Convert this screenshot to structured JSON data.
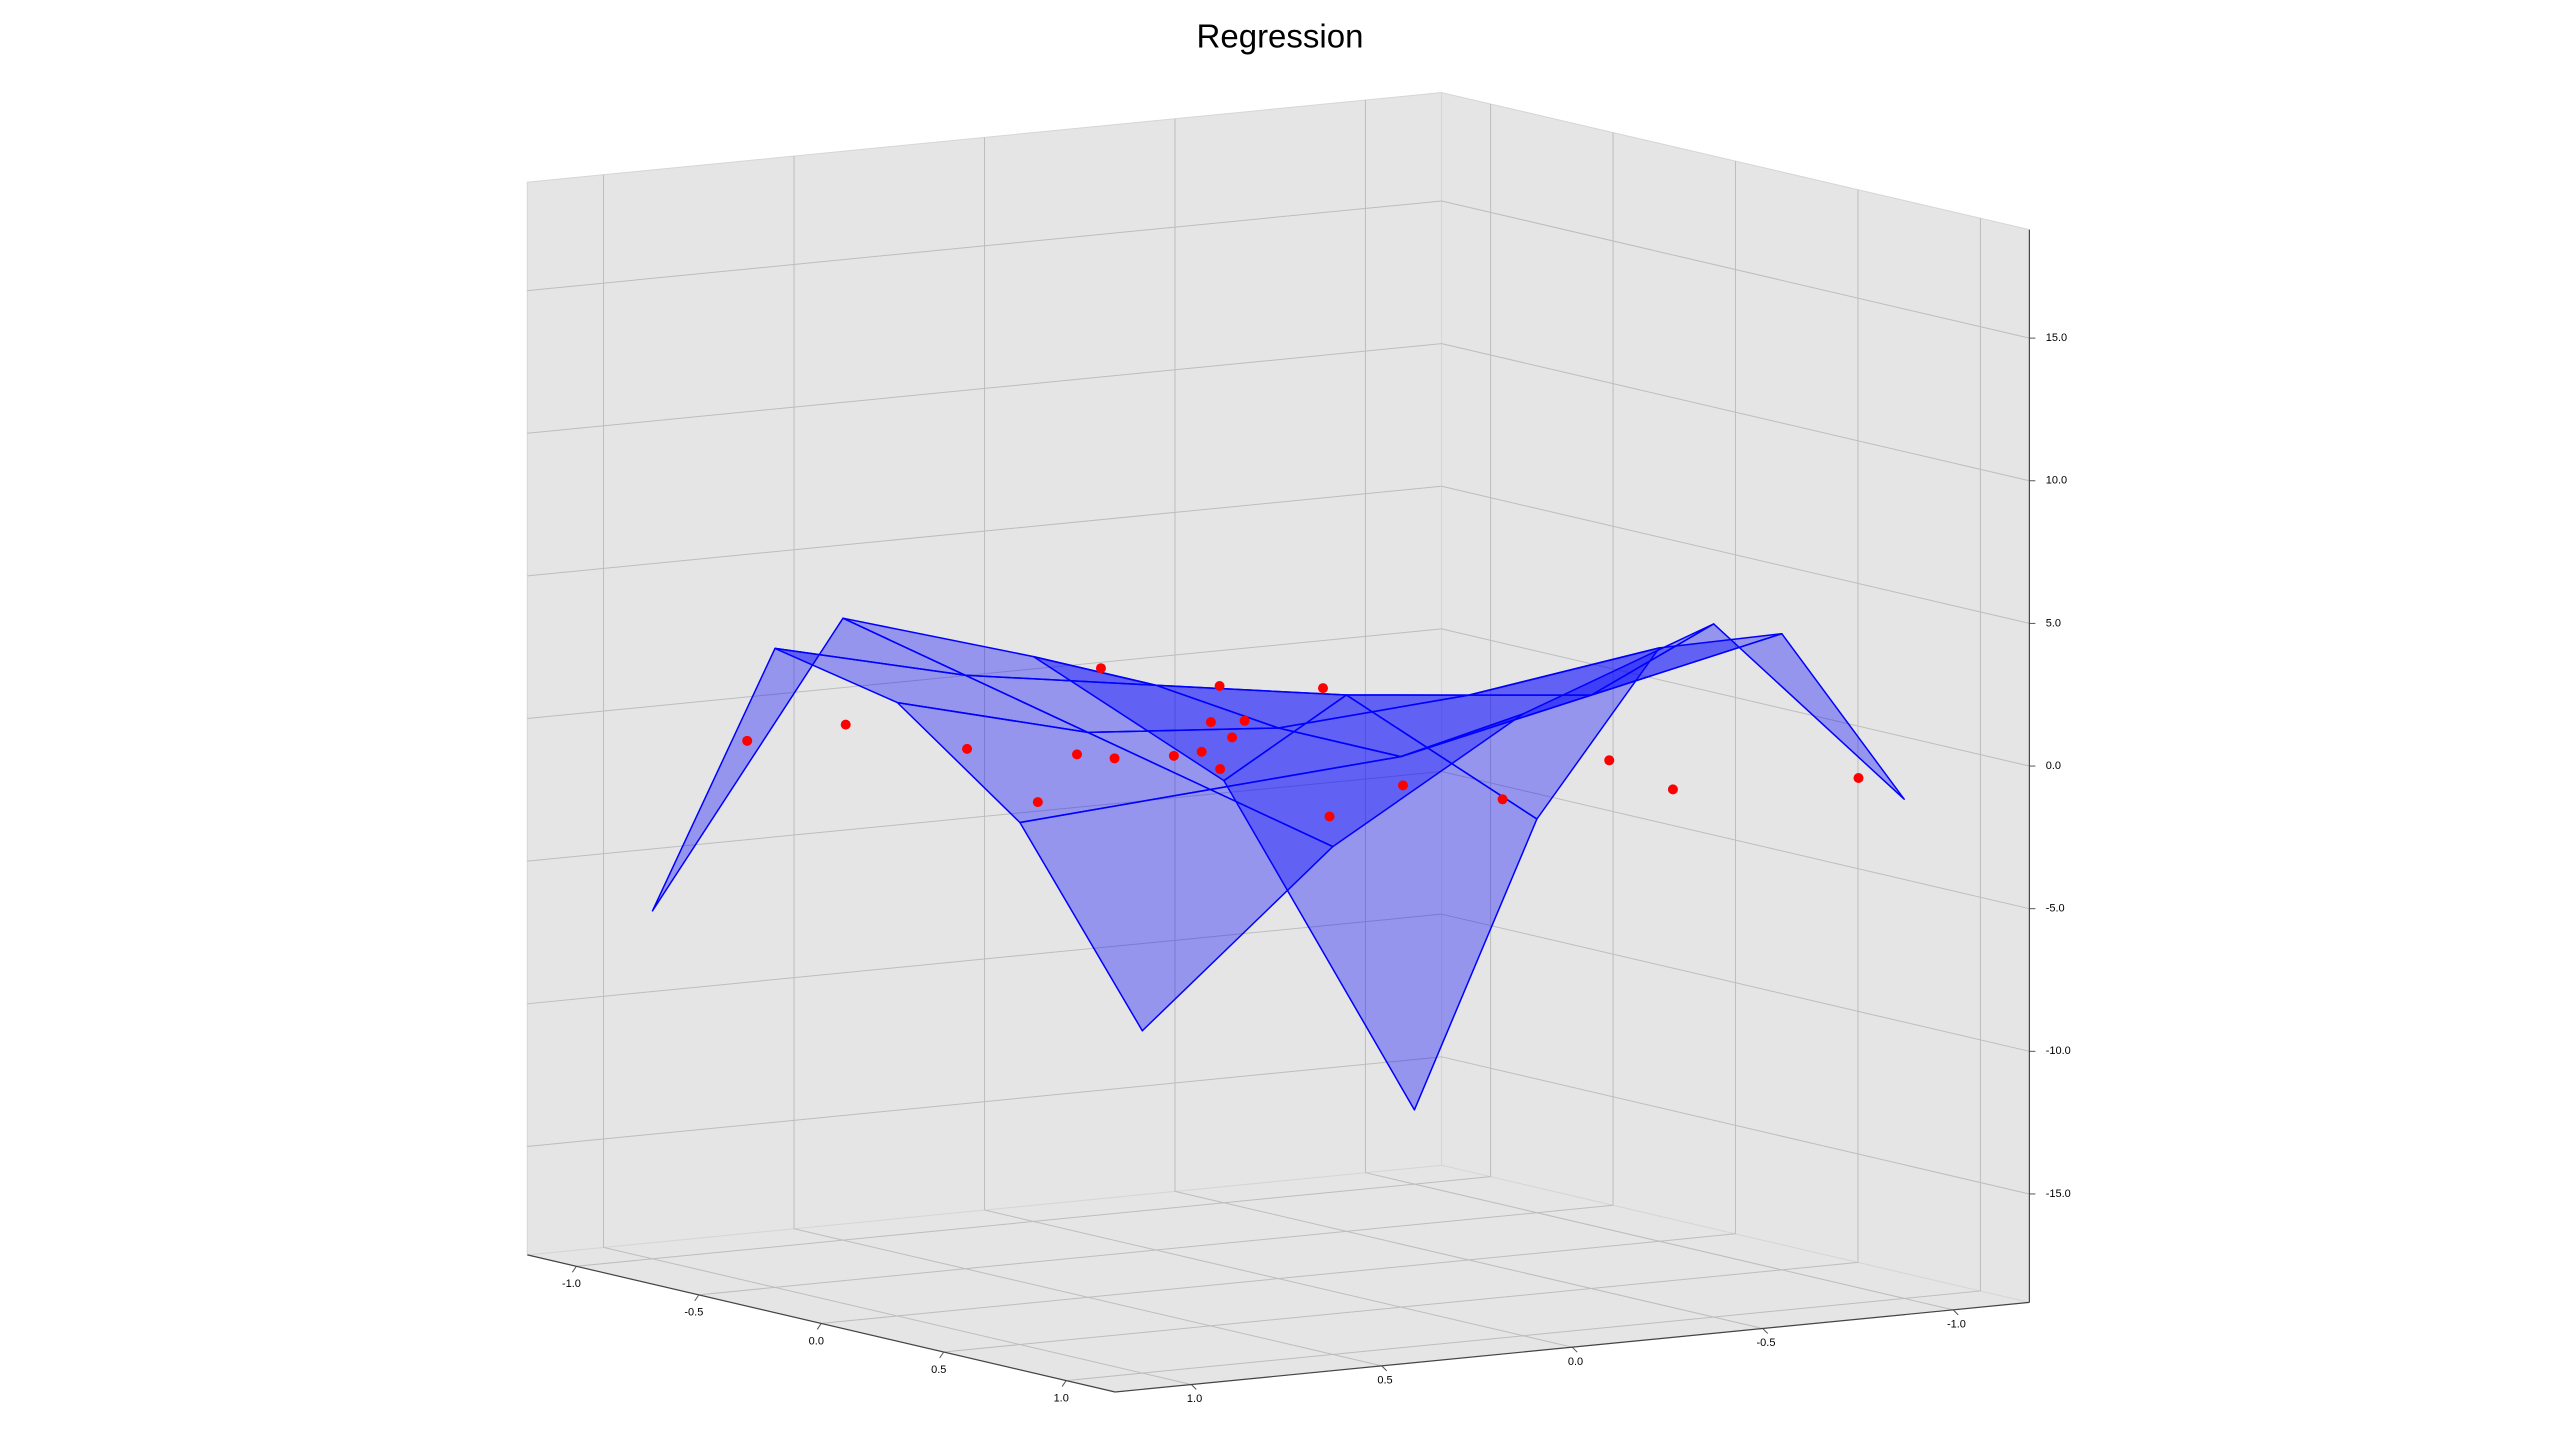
{
  "chart_data": {
    "type": "surface3d",
    "title": "Regression",
    "xlim": [
      -1.2,
      1.2
    ],
    "ylim": [
      -1.2,
      1.2
    ],
    "zlim": [
      -18.8,
      18.8
    ],
    "xticks": [
      {
        "value": -1,
        "label": "-1.0"
      },
      {
        "value": -0.5,
        "label": "-0.5"
      },
      {
        "value": 0,
        "label": "0.0"
      },
      {
        "value": 0.5,
        "label": "0.5"
      },
      {
        "value": 1,
        "label": "1.0"
      }
    ],
    "yticks": [
      {
        "value": -1,
        "label": "-1.0"
      },
      {
        "value": -0.5,
        "label": "-0.5"
      },
      {
        "value": 0,
        "label": "0.0"
      },
      {
        "value": 0.5,
        "label": "0.5"
      },
      {
        "value": 1,
        "label": "1.0"
      }
    ],
    "zticks": [
      {
        "value": -15,
        "label": "-15.0"
      },
      {
        "value": -10,
        "label": "-10.0"
      },
      {
        "value": -5,
        "label": "-5.0"
      },
      {
        "value": 0,
        "label": "0.0"
      },
      {
        "value": 5,
        "label": "5.0"
      },
      {
        "value": 10,
        "label": "10.0"
      },
      {
        "value": 15,
        "label": "15.0"
      }
    ],
    "grid": true,
    "surface": {
      "color": "#0000ff",
      "x": [
        -1,
        -0.5,
        0,
        0.5,
        1
      ],
      "y": [
        -1,
        -0.5,
        0,
        0.5,
        1
      ],
      "z": [
        [
          -16.2,
          -4,
          1,
          3,
          -6.6
        ],
        [
          -5,
          0,
          1,
          2,
          3.6
        ],
        [
          2,
          1,
          0.5,
          1,
          2.7
        ],
        [
          3.5,
          2,
          0.5,
          0,
          -0.5
        ],
        [
          -1.3,
          5.5,
          3,
          -1,
          -6.8
        ]
      ]
    },
    "scatter": {
      "color": "#ff0000",
      "x": [
        -0.8,
        -0.6,
        -0.4,
        0.2,
        -0.2,
        -0.6,
        0,
        -0.1,
        0.2,
        -0.4,
        -0.8,
        0.4,
        0.2,
        -0.2,
        -1.0,
        0.8,
        0.4,
        0.2,
        0.2,
        0.6,
        1.0
      ],
      "y": [
        0.88,
        0.75,
        0.56,
        0.76,
        0.4,
        0.08,
        0.43,
        0.21,
        0.33,
        -0.08,
        -0.36,
        0.41,
        0.25,
        -0.04,
        -0.76,
        0.38,
        -0.07,
        -0.46,
        -0.74,
        -0.65,
        -0.88
      ],
      "z": [
        -0.4,
        0.4,
        -0.3,
        -0.7,
        -0.3,
        1.5,
        0.0,
        -0.4,
        0.5,
        -0.2,
        -0.1,
        0.4,
        0.9,
        0.3,
        -1.1,
        -0.5,
        -0.8,
        -2.2,
        -1.2,
        -1.3,
        -0.4
      ]
    }
  }
}
